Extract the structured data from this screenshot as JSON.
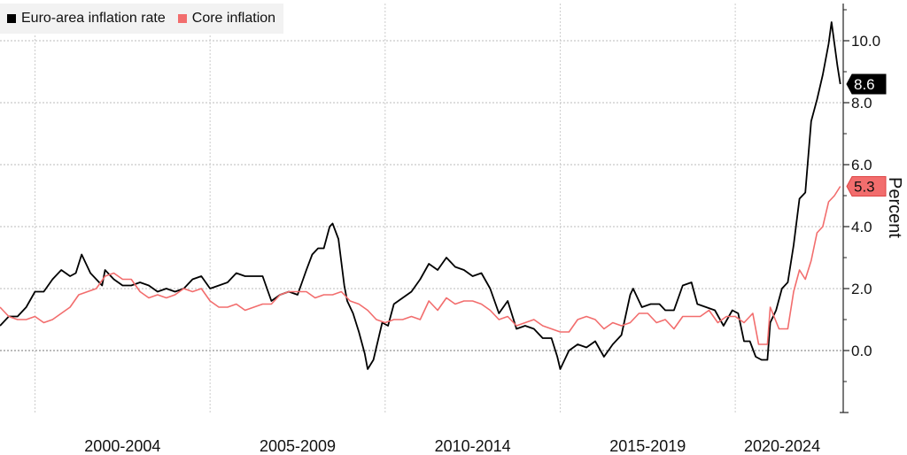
{
  "chart_data": {
    "type": "line",
    "title": "",
    "xlabel": "",
    "ylabel": "Percent",
    "ylim": [
      -2,
      11.2
    ],
    "xlim": [
      "1999-01",
      "2023-02"
    ],
    "x_tick_labels": [
      {
        "label": "2000-2004",
        "period_start": "2000-01",
        "period_end": "2004-12"
      },
      {
        "label": "2005-2009",
        "period_start": "2005-01",
        "period_end": "2009-12"
      },
      {
        "label": "2010-2014",
        "period_start": "2010-01",
        "period_end": "2014-12"
      },
      {
        "label": "2015-2019",
        "period_start": "2015-01",
        "period_end": "2019-12"
      },
      {
        "label": "2020-2024",
        "period_start": "2020-01",
        "period_end": "2024-12"
      }
    ],
    "y_ticks": [
      "0.0",
      "2.0",
      "4.0",
      "6.0",
      "8.0",
      "10.0"
    ],
    "grid": true,
    "legend_position": "top-left",
    "series": [
      {
        "name": "Euro-area inflation rate",
        "color": "#000000",
        "last_value_label": "8.6",
        "points": [
          [
            "1999-01",
            0.8
          ],
          [
            "1999-04",
            1.1
          ],
          [
            "1999-07",
            1.1
          ],
          [
            "1999-10",
            1.4
          ],
          [
            "2000-01",
            1.9
          ],
          [
            "2000-04",
            1.9
          ],
          [
            "2000-07",
            2.3
          ],
          [
            "2000-10",
            2.6
          ],
          [
            "2001-01",
            2.4
          ],
          [
            "2001-03",
            2.5
          ],
          [
            "2001-05",
            3.1
          ],
          [
            "2001-08",
            2.5
          ],
          [
            "2001-10",
            2.3
          ],
          [
            "2001-12",
            2.1
          ],
          [
            "2002-01",
            2.6
          ],
          [
            "2002-04",
            2.3
          ],
          [
            "2002-07",
            2.1
          ],
          [
            "2002-10",
            2.1
          ],
          [
            "2003-01",
            2.2
          ],
          [
            "2003-04",
            2.1
          ],
          [
            "2003-07",
            1.9
          ],
          [
            "2003-10",
            2.0
          ],
          [
            "2004-01",
            1.9
          ],
          [
            "2004-04",
            2.0
          ],
          [
            "2004-07",
            2.3
          ],
          [
            "2004-10",
            2.4
          ],
          [
            "2005-01",
            2.0
          ],
          [
            "2005-04",
            2.1
          ],
          [
            "2005-07",
            2.2
          ],
          [
            "2005-10",
            2.5
          ],
          [
            "2006-01",
            2.4
          ],
          [
            "2006-04",
            2.4
          ],
          [
            "2006-07",
            2.4
          ],
          [
            "2006-10",
            1.6
          ],
          [
            "2007-01",
            1.8
          ],
          [
            "2007-04",
            1.9
          ],
          [
            "2007-07",
            1.8
          ],
          [
            "2007-10",
            2.6
          ],
          [
            "2007-12",
            3.1
          ],
          [
            "2008-02",
            3.3
          ],
          [
            "2008-04",
            3.3
          ],
          [
            "2008-06",
            4.0
          ],
          [
            "2008-07",
            4.1
          ],
          [
            "2008-09",
            3.6
          ],
          [
            "2008-11",
            2.1
          ],
          [
            "2008-12",
            1.6
          ],
          [
            "2009-02",
            1.2
          ],
          [
            "2009-04",
            0.6
          ],
          [
            "2009-06",
            -0.1
          ],
          [
            "2009-07",
            -0.6
          ],
          [
            "2009-09",
            -0.3
          ],
          [
            "2009-11",
            0.5
          ],
          [
            "2009-12",
            0.9
          ],
          [
            "2010-02",
            0.8
          ],
          [
            "2010-04",
            1.5
          ],
          [
            "2010-07",
            1.7
          ],
          [
            "2010-10",
            1.9
          ],
          [
            "2011-01",
            2.3
          ],
          [
            "2011-04",
            2.8
          ],
          [
            "2011-07",
            2.6
          ],
          [
            "2011-10",
            3.0
          ],
          [
            "2012-01",
            2.7
          ],
          [
            "2012-04",
            2.6
          ],
          [
            "2012-07",
            2.4
          ],
          [
            "2012-10",
            2.5
          ],
          [
            "2013-01",
            2.0
          ],
          [
            "2013-04",
            1.2
          ],
          [
            "2013-07",
            1.6
          ],
          [
            "2013-10",
            0.7
          ],
          [
            "2014-01",
            0.8
          ],
          [
            "2014-04",
            0.7
          ],
          [
            "2014-07",
            0.4
          ],
          [
            "2014-10",
            0.4
          ],
          [
            "2014-12",
            -0.2
          ],
          [
            "2015-01",
            -0.6
          ],
          [
            "2015-04",
            0.0
          ],
          [
            "2015-07",
            0.2
          ],
          [
            "2015-10",
            0.1
          ],
          [
            "2016-01",
            0.3
          ],
          [
            "2016-04",
            -0.2
          ],
          [
            "2016-07",
            0.2
          ],
          [
            "2016-10",
            0.5
          ],
          [
            "2017-01",
            1.8
          ],
          [
            "2017-02",
            2.0
          ],
          [
            "2017-05",
            1.4
          ],
          [
            "2017-08",
            1.5
          ],
          [
            "2017-11",
            1.5
          ],
          [
            "2018-01",
            1.3
          ],
          [
            "2018-04",
            1.3
          ],
          [
            "2018-07",
            2.1
          ],
          [
            "2018-10",
            2.2
          ],
          [
            "2018-12",
            1.5
          ],
          [
            "2019-03",
            1.4
          ],
          [
            "2019-06",
            1.3
          ],
          [
            "2019-09",
            0.8
          ],
          [
            "2019-12",
            1.3
          ],
          [
            "2020-02",
            1.2
          ],
          [
            "2020-04",
            0.3
          ],
          [
            "2020-06",
            0.3
          ],
          [
            "2020-08",
            -0.2
          ],
          [
            "2020-10",
            -0.3
          ],
          [
            "2020-12",
            -0.3
          ],
          [
            "2021-01",
            0.9
          ],
          [
            "2021-03",
            1.3
          ],
          [
            "2021-05",
            2.0
          ],
          [
            "2021-07",
            2.2
          ],
          [
            "2021-09",
            3.4
          ],
          [
            "2021-11",
            4.9
          ],
          [
            "2022-01",
            5.1
          ],
          [
            "2022-03",
            7.4
          ],
          [
            "2022-05",
            8.1
          ],
          [
            "2022-07",
            8.9
          ],
          [
            "2022-09",
            9.9
          ],
          [
            "2022-10",
            10.6
          ],
          [
            "2022-12",
            9.2
          ],
          [
            "2023-01",
            8.6
          ]
        ]
      },
      {
        "name": "Core inflation",
        "color": "#f26d6d",
        "last_value_label": "5.3",
        "points": [
          [
            "1999-01",
            1.4
          ],
          [
            "1999-04",
            1.1
          ],
          [
            "1999-07",
            1.0
          ],
          [
            "1999-10",
            1.0
          ],
          [
            "2000-01",
            1.1
          ],
          [
            "2000-04",
            0.9
          ],
          [
            "2000-07",
            1.0
          ],
          [
            "2000-10",
            1.2
          ],
          [
            "2001-01",
            1.4
          ],
          [
            "2001-04",
            1.8
          ],
          [
            "2001-07",
            1.9
          ],
          [
            "2001-10",
            2.0
          ],
          [
            "2002-01",
            2.4
          ],
          [
            "2002-04",
            2.5
          ],
          [
            "2002-07",
            2.3
          ],
          [
            "2002-10",
            2.3
          ],
          [
            "2003-01",
            1.9
          ],
          [
            "2003-04",
            1.7
          ],
          [
            "2003-07",
            1.8
          ],
          [
            "2003-10",
            1.7
          ],
          [
            "2004-01",
            1.8
          ],
          [
            "2004-04",
            2.0
          ],
          [
            "2004-07",
            1.9
          ],
          [
            "2004-10",
            2.0
          ],
          [
            "2005-01",
            1.6
          ],
          [
            "2005-04",
            1.4
          ],
          [
            "2005-07",
            1.4
          ],
          [
            "2005-10",
            1.5
          ],
          [
            "2006-01",
            1.3
          ],
          [
            "2006-04",
            1.4
          ],
          [
            "2006-07",
            1.5
          ],
          [
            "2006-10",
            1.5
          ],
          [
            "2007-01",
            1.8
          ],
          [
            "2007-04",
            1.9
          ],
          [
            "2007-07",
            1.9
          ],
          [
            "2007-10",
            1.9
          ],
          [
            "2008-01",
            1.7
          ],
          [
            "2008-04",
            1.8
          ],
          [
            "2008-07",
            1.8
          ],
          [
            "2008-10",
            1.9
          ],
          [
            "2009-01",
            1.6
          ],
          [
            "2009-04",
            1.5
          ],
          [
            "2009-07",
            1.3
          ],
          [
            "2009-10",
            1.0
          ],
          [
            "2010-01",
            0.9
          ],
          [
            "2010-04",
            1.0
          ],
          [
            "2010-07",
            1.0
          ],
          [
            "2010-10",
            1.1
          ],
          [
            "2011-01",
            1.0
          ],
          [
            "2011-04",
            1.6
          ],
          [
            "2011-07",
            1.3
          ],
          [
            "2011-10",
            1.7
          ],
          [
            "2012-01",
            1.5
          ],
          [
            "2012-04",
            1.6
          ],
          [
            "2012-07",
            1.6
          ],
          [
            "2012-10",
            1.5
          ],
          [
            "2013-01",
            1.3
          ],
          [
            "2013-04",
            1.0
          ],
          [
            "2013-07",
            1.1
          ],
          [
            "2013-10",
            0.8
          ],
          [
            "2014-01",
            0.9
          ],
          [
            "2014-04",
            1.0
          ],
          [
            "2014-07",
            0.8
          ],
          [
            "2014-10",
            0.7
          ],
          [
            "2015-01",
            0.6
          ],
          [
            "2015-04",
            0.6
          ],
          [
            "2015-07",
            1.0
          ],
          [
            "2015-10",
            1.1
          ],
          [
            "2016-01",
            1.0
          ],
          [
            "2016-04",
            0.7
          ],
          [
            "2016-07",
            0.9
          ],
          [
            "2016-10",
            0.8
          ],
          [
            "2017-01",
            0.9
          ],
          [
            "2017-04",
            1.2
          ],
          [
            "2017-07",
            1.2
          ],
          [
            "2017-10",
            0.9
          ],
          [
            "2018-01",
            1.0
          ],
          [
            "2018-04",
            0.7
          ],
          [
            "2018-07",
            1.1
          ],
          [
            "2018-10",
            1.1
          ],
          [
            "2019-01",
            1.1
          ],
          [
            "2019-04",
            1.3
          ],
          [
            "2019-07",
            0.9
          ],
          [
            "2019-10",
            1.1
          ],
          [
            "2020-01",
            1.1
          ],
          [
            "2020-04",
            0.9
          ],
          [
            "2020-07",
            1.2
          ],
          [
            "2020-09",
            0.2
          ],
          [
            "2020-12",
            0.2
          ],
          [
            "2021-01",
            1.4
          ],
          [
            "2021-04",
            0.7
          ],
          [
            "2021-07",
            0.7
          ],
          [
            "2021-09",
            1.9
          ],
          [
            "2021-11",
            2.6
          ],
          [
            "2022-01",
            2.3
          ],
          [
            "2022-03",
            2.9
          ],
          [
            "2022-05",
            3.8
          ],
          [
            "2022-07",
            4.0
          ],
          [
            "2022-09",
            4.8
          ],
          [
            "2022-11",
            5.0
          ],
          [
            "2023-01",
            5.3
          ]
        ]
      }
    ]
  }
}
